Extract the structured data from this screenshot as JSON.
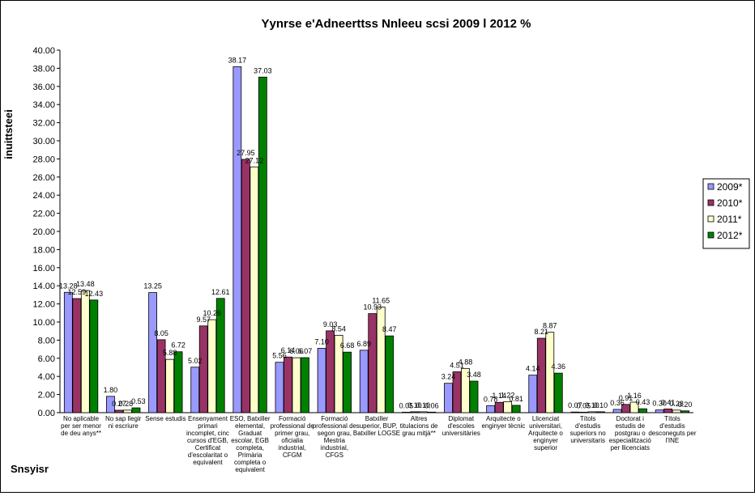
{
  "chart_data": {
    "type": "bar",
    "title": "Yynrse e'Adneerttss  Nnleeu scsi 2009 l 2012 %",
    "xlabel": "Snsyisr",
    "ylabel": "inuittsteei",
    "ylim": [
      0,
      40
    ],
    "ytick_step": 2,
    "yticks_format": "0.00",
    "grid": false,
    "legend": "right",
    "categories": [
      "No aplicable per ser menor de deu anys**",
      "No sap llegir ni escriure",
      "Sense estudis",
      "Ensenyament primari incomplet, cinc cursos d'EGB, Certificat d'escolaritat o equivalent",
      "ESO, Batxiller elemental, Graduat escolar, EGB completa, Primària completa o equivalent",
      "Formació professional de primer grau, oficialia industrial, CFGM",
      "Formació professional de segon grau, Mestria industrial, CFGS",
      "Batxiller superior, BUP, Batxiller LOGSE",
      "Altres titulacions de grau mitjà**",
      "Diplomat d'escoles universitàries",
      "Arquitecte o enginyer tècnic",
      "Llicenciat universitari, Arquitecte o enginyer superior",
      "Títols d'estudis superiors no universitaris",
      "Doctorat i estudis de postgrau o especialització per llicenciats",
      "Títols d'estudis desconeguts per l'INE"
    ],
    "series": [
      {
        "name": "2009*",
        "color": "#9999FF",
        "values": [
          13.28,
          1.8,
          13.25,
          5.02,
          38.17,
          5.56,
          7.1,
          6.89,
          0.05,
          3.24,
          0.78,
          4.14,
          0.07,
          0.36,
          0.3
        ]
      },
      {
        "name": "2010*",
        "color": "#993366",
        "values": [
          12.59,
          0.27,
          8.05,
          9.57,
          27.95,
          6.14,
          9.03,
          10.93,
          0.1,
          4.51,
          1.14,
          8.21,
          0.05,
          0.91,
          0.41
        ]
      },
      {
        "name": "2011*",
        "color": "#FFFFCC",
        "values": [
          13.48,
          0.28,
          5.88,
          10.26,
          27.12,
          6.06,
          8.54,
          11.65,
          0.1,
          4.88,
          1.22,
          8.87,
          0.1,
          1.16,
          0.28
        ]
      },
      {
        "name": "2012*",
        "color": "#008000",
        "values": [
          12.43,
          0.53,
          6.72,
          12.61,
          37.03,
          6.07,
          6.68,
          8.47,
          0.06,
          3.48,
          0.81,
          4.36,
          0.1,
          0.43,
          0.2
        ]
      }
    ]
  }
}
